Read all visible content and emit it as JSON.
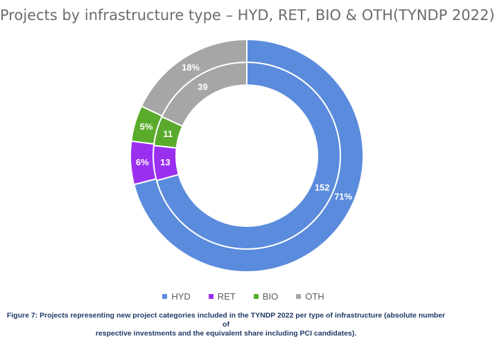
{
  "title": "Projects by infrastructure type – HYD, RET, BIO & OTH(TYNDP 2022)",
  "chart_data": {
    "type": "pie",
    "subtype": "double-donut",
    "title": "Projects by infrastructure type – HYD, RET, BIO & OTH(TYNDP 2022)",
    "categories": [
      "HYD",
      "RET",
      "BIO",
      "OTH"
    ],
    "colors": [
      "#5b8bdc",
      "#9b2ff0",
      "#5aab2c",
      "#a6a6a6"
    ],
    "series": [
      {
        "ring": "inner",
        "values": [
          152,
          13,
          11,
          39
        ],
        "labels": [
          "152",
          "13",
          "11",
          "39"
        ]
      },
      {
        "ring": "outer",
        "values": [
          71,
          6,
          5,
          18
        ],
        "labels": [
          "71%",
          "6%",
          "5%",
          "18%"
        ]
      }
    ],
    "legend_position": "bottom"
  },
  "legend": [
    {
      "label": "HYD",
      "color": "#5b8bdc"
    },
    {
      "label": "RET",
      "color": "#9b2ff0"
    },
    {
      "label": "BIO",
      "color": "#5aab2c"
    },
    {
      "label": "OTH",
      "color": "#a6a6a6"
    }
  ],
  "caption": {
    "line1": "Figure 7: Projects representing new project categories included in the TYNDP 2022 per type of infrastructure (absolute number of",
    "line2": "respective investments and the equivalent share including PCI candidates)."
  }
}
